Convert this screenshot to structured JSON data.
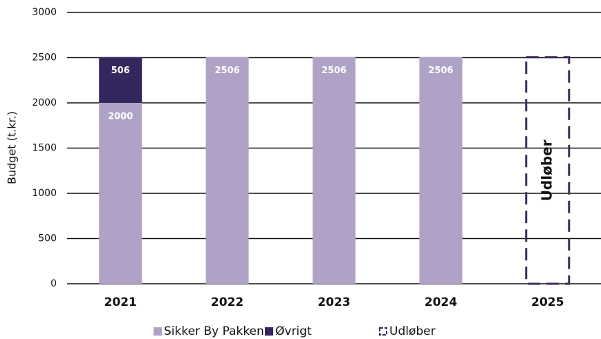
{
  "chart_data": {
    "type": "bar",
    "stacked": true,
    "y_label": "Budget (t.kr.)",
    "categories": [
      "2021",
      "2022",
      "2023",
      "2024",
      "2025"
    ],
    "series": [
      {
        "name": "Sikker By Pakken",
        "color": "#b0a2c6",
        "values": [
          2000,
          2506,
          2506,
          2506,
          null
        ]
      },
      {
        "name": "Øvrigt",
        "color": "#35265e",
        "values": [
          506,
          null,
          null,
          null,
          null
        ]
      },
      {
        "name": "Udløber",
        "color": "#3d2a5e",
        "style": "dashed",
        "values": [
          null,
          null,
          null,
          null,
          2506
        ]
      }
    ],
    "annotation": "Udløber",
    "ylim": [
      0,
      3000
    ],
    "yticks": [
      0,
      500,
      1000,
      1500,
      2000,
      2500,
      3000
    ],
    "grid": true
  }
}
